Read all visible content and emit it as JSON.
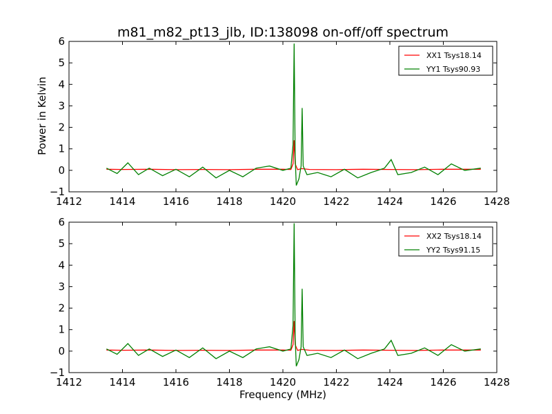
{
  "title": "m81_m82_pt13_jlb, ID:138098 on-off/off spectrum",
  "ylabel": "Power in Kelvin",
  "xlabel": "Frequency (MHz)",
  "chart_data": [
    {
      "type": "line",
      "xlim": [
        1412,
        1428
      ],
      "ylim": [
        -1,
        6
      ],
      "xticks": [
        1412,
        1414,
        1416,
        1418,
        1420,
        1422,
        1424,
        1426,
        1428
      ],
      "yticks": [
        -1,
        0,
        1,
        2,
        3,
        4,
        5,
        6
      ],
      "legend_position": "top-right",
      "series": [
        {
          "name": "XX1 Tsys18.14",
          "color": "#ff0000",
          "x": [
            1413.4,
            1414.0,
            1415.0,
            1416.0,
            1417.0,
            1418.0,
            1419.0,
            1420.0,
            1420.3,
            1420.38,
            1420.42,
            1420.46,
            1420.55,
            1420.7,
            1421.0,
            1422.0,
            1423.0,
            1424.0,
            1425.0,
            1426.0,
            1427.4
          ],
          "values": [
            0.05,
            0.04,
            0.05,
            0.03,
            0.04,
            0.03,
            0.05,
            0.05,
            0.04,
            0.3,
            1.4,
            0.3,
            0.03,
            0.08,
            0.04,
            0.03,
            0.05,
            0.04,
            0.03,
            0.05,
            0.05
          ]
        },
        {
          "name": "YY1 Tsys90.93",
          "color": "#008000",
          "x": [
            1413.4,
            1413.8,
            1414.2,
            1414.6,
            1415.0,
            1415.5,
            1416.0,
            1416.5,
            1417.0,
            1417.5,
            1418.0,
            1418.5,
            1419.0,
            1419.5,
            1420.0,
            1420.3,
            1420.38,
            1420.42,
            1420.46,
            1420.5,
            1420.6,
            1420.68,
            1420.72,
            1420.76,
            1420.9,
            1421.3,
            1421.8,
            1422.3,
            1422.8,
            1423.3,
            1423.8,
            1424.05,
            1424.3,
            1424.8,
            1425.3,
            1425.8,
            1426.3,
            1426.8,
            1427.4
          ],
          "values": [
            0.1,
            -0.15,
            0.35,
            -0.2,
            0.1,
            -0.25,
            0.05,
            -0.3,
            0.15,
            -0.35,
            0.0,
            -0.3,
            0.1,
            0.2,
            0.0,
            0.1,
            1.2,
            5.9,
            0.6,
            -0.7,
            -0.4,
            0.2,
            2.9,
            0.2,
            -0.2,
            -0.1,
            -0.3,
            0.05,
            -0.35,
            -0.1,
            0.1,
            0.5,
            -0.2,
            -0.1,
            0.15,
            -0.2,
            0.3,
            0.0,
            0.1
          ]
        }
      ]
    },
    {
      "type": "line",
      "xlim": [
        1412,
        1428
      ],
      "ylim": [
        -1,
        6
      ],
      "xticks": [
        1412,
        1414,
        1416,
        1418,
        1420,
        1422,
        1424,
        1426,
        1428
      ],
      "yticks": [
        -1,
        0,
        1,
        2,
        3,
        4,
        5,
        6
      ],
      "legend_position": "top-right",
      "series": [
        {
          "name": "XX2 Tsys18.14",
          "color": "#ff0000",
          "x": [
            1413.4,
            1414.0,
            1415.0,
            1416.0,
            1417.0,
            1418.0,
            1419.0,
            1420.0,
            1420.3,
            1420.38,
            1420.42,
            1420.46,
            1420.55,
            1420.7,
            1421.0,
            1422.0,
            1423.0,
            1424.0,
            1425.0,
            1426.0,
            1427.4
          ],
          "values": [
            0.05,
            0.04,
            0.05,
            0.03,
            0.04,
            0.03,
            0.05,
            0.05,
            0.04,
            0.3,
            1.4,
            0.3,
            0.03,
            0.08,
            0.04,
            0.03,
            0.05,
            0.04,
            0.03,
            0.05,
            0.05
          ]
        },
        {
          "name": "YY2 Tsys91.15",
          "color": "#008000",
          "x": [
            1413.4,
            1413.8,
            1414.2,
            1414.6,
            1415.0,
            1415.5,
            1416.0,
            1416.5,
            1417.0,
            1417.5,
            1418.0,
            1418.5,
            1419.0,
            1419.5,
            1420.0,
            1420.3,
            1420.38,
            1420.42,
            1420.46,
            1420.5,
            1420.6,
            1420.68,
            1420.72,
            1420.76,
            1420.9,
            1421.3,
            1421.8,
            1422.3,
            1422.8,
            1423.3,
            1423.8,
            1424.05,
            1424.3,
            1424.8,
            1425.3,
            1425.8,
            1426.3,
            1426.8,
            1427.4
          ],
          "values": [
            0.1,
            -0.15,
            0.35,
            -0.2,
            0.1,
            -0.25,
            0.05,
            -0.3,
            0.15,
            -0.35,
            0.0,
            -0.3,
            0.1,
            0.2,
            0.0,
            0.1,
            1.2,
            5.95,
            0.6,
            -0.7,
            -0.4,
            0.2,
            2.9,
            0.2,
            -0.2,
            -0.1,
            -0.3,
            0.05,
            -0.35,
            -0.1,
            0.1,
            0.5,
            -0.2,
            -0.1,
            0.15,
            -0.2,
            0.3,
            0.0,
            0.1
          ]
        }
      ]
    }
  ]
}
